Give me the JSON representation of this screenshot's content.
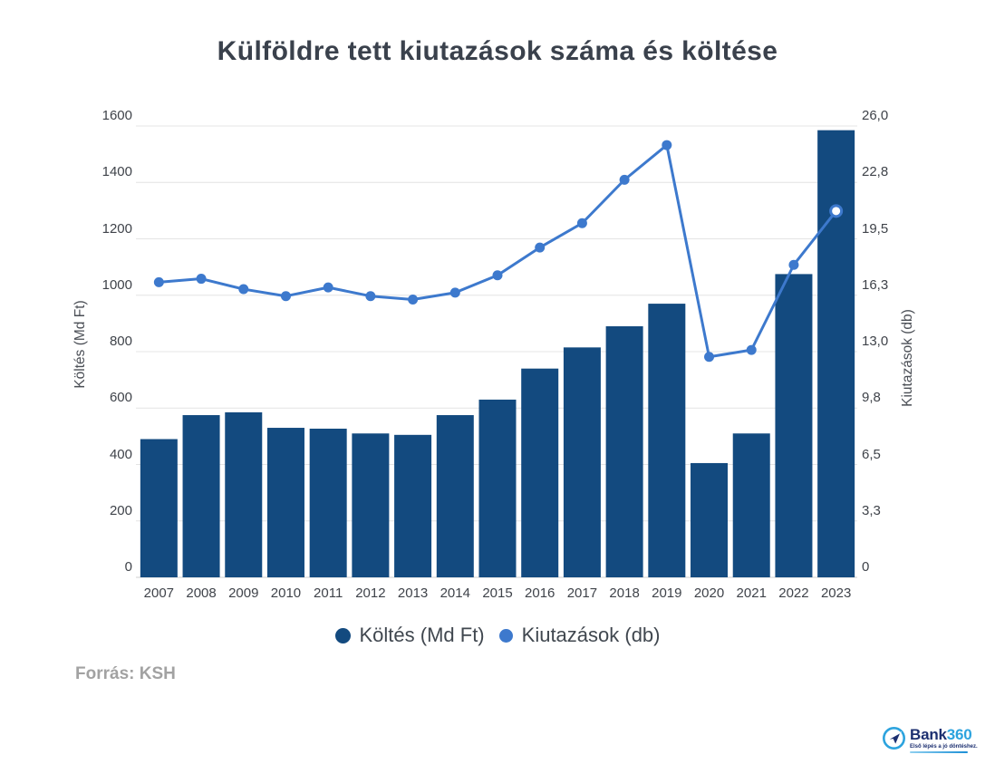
{
  "title": "Külföldre tett kiutazások száma és költése",
  "source": "Forrás: KSH",
  "logo": {
    "brand_bank": "Bank",
    "brand_360": "360",
    "tagline": "Első lépés a jó döntéshez."
  },
  "chart_data": {
    "type": "bar+line",
    "title": "Külföldre tett kiutazások száma és költése",
    "categories": [
      "2007",
      "2008",
      "2009",
      "2010",
      "2011",
      "2012",
      "2013",
      "2014",
      "2015",
      "2016",
      "2017",
      "2018",
      "2019",
      "2020",
      "2021",
      "2022",
      "2023"
    ],
    "series": [
      {
        "name": "Költés (Md Ft)",
        "type": "bar",
        "axis": "left",
        "values": [
          490,
          575,
          585,
          530,
          527,
          510,
          505,
          575,
          630,
          740,
          815,
          890,
          970,
          405,
          510,
          1075,
          1585
        ]
      },
      {
        "name": "Kiutazások (db)",
        "type": "line",
        "axis": "right",
        "values": [
          17.0,
          17.2,
          16.6,
          16.2,
          16.7,
          16.2,
          16.0,
          16.4,
          17.4,
          19.0,
          20.4,
          22.9,
          24.9,
          12.7,
          13.1,
          18.0,
          21.1
        ],
        "highlight_last_point": true
      }
    ],
    "ylabel_left": "Költés (Md Ft)",
    "ylabel_right": "Kiutazások (db)",
    "ylim_left": [
      0,
      1600
    ],
    "ylim_right": [
      0,
      26
    ],
    "left_ticks": [
      0,
      200,
      400,
      600,
      800,
      1000,
      1200,
      1400,
      1600
    ],
    "right_tick_labels": [
      "0",
      "3,3",
      "6,5",
      "9,8",
      "13,0",
      "16,3",
      "19,5",
      "22,8",
      "26,0"
    ],
    "grid": "horizontal",
    "legend_position": "bottom",
    "colors": {
      "bar": "#134a7f",
      "line": "#3d79cd",
      "grid": "#e4e4e4",
      "baseline": "#cfcfcf",
      "tick_text": "#3f434a",
      "title_text": "#3a414c",
      "legend_text": "#40474f",
      "source_text": "#a2a2a2",
      "logo_navy": "#1c2f70",
      "logo_blue": "#2ca3de"
    }
  }
}
